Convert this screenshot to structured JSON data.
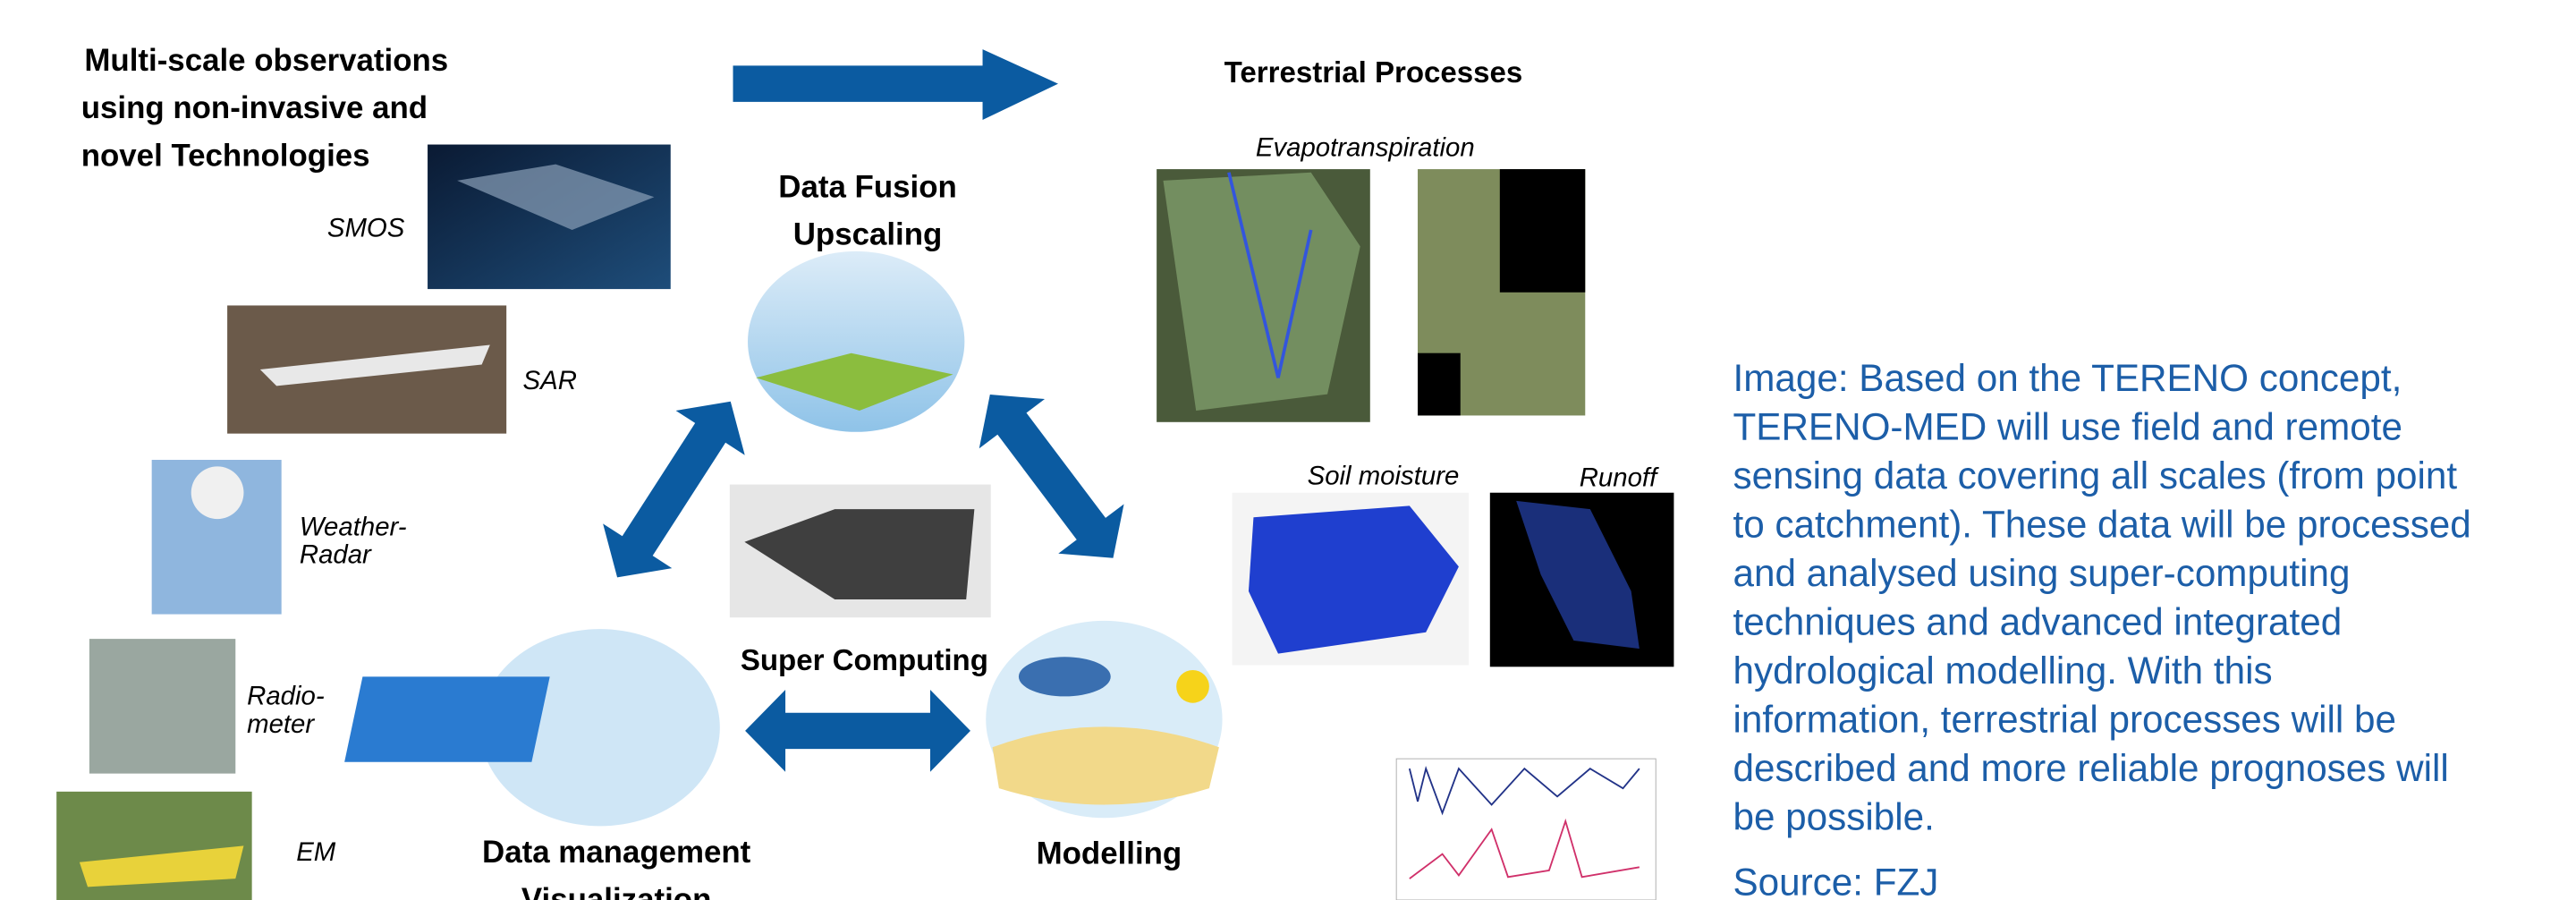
{
  "title": {
    "lines": [
      "Multi-scale observations",
      "using non-invasive and",
      "novel Technologies"
    ]
  },
  "instruments": [
    {
      "lines": [
        "SMOS"
      ]
    },
    {
      "lines": [
        "SAR"
      ]
    },
    {
      "lines": [
        "Weather-",
        "Radar"
      ]
    },
    {
      "lines": [
        "Radio-",
        "meter"
      ]
    },
    {
      "lines": [
        "EM"
      ]
    }
  ],
  "hub": {
    "fusion": [
      "Data Fusion",
      "Upscaling"
    ],
    "computing": "Super Computing",
    "data_management": [
      "Data management",
      "Visualization"
    ],
    "modelling": "Modelling"
  },
  "processes": {
    "title": "Terrestrial  Processes",
    "evapotranspiration": "Evapotranspiration",
    "soil_moisture": "Soil moisture",
    "runoff": "Runoff"
  },
  "caption": {
    "lines": [
      "Image: Based on the TERENO concept,",
      "TERENO-MED will use field and remote",
      "sensing data covering all scales (from point",
      "to catchment). These data will be processed",
      "and analysed using super-computing",
      "techniques and advanced integrated",
      "hydrological modelling. With this",
      "information, terrestrial processes will be",
      "described and more reliable prognoses will",
      "be possible."
    ],
    "source": "Source: FZJ"
  }
}
